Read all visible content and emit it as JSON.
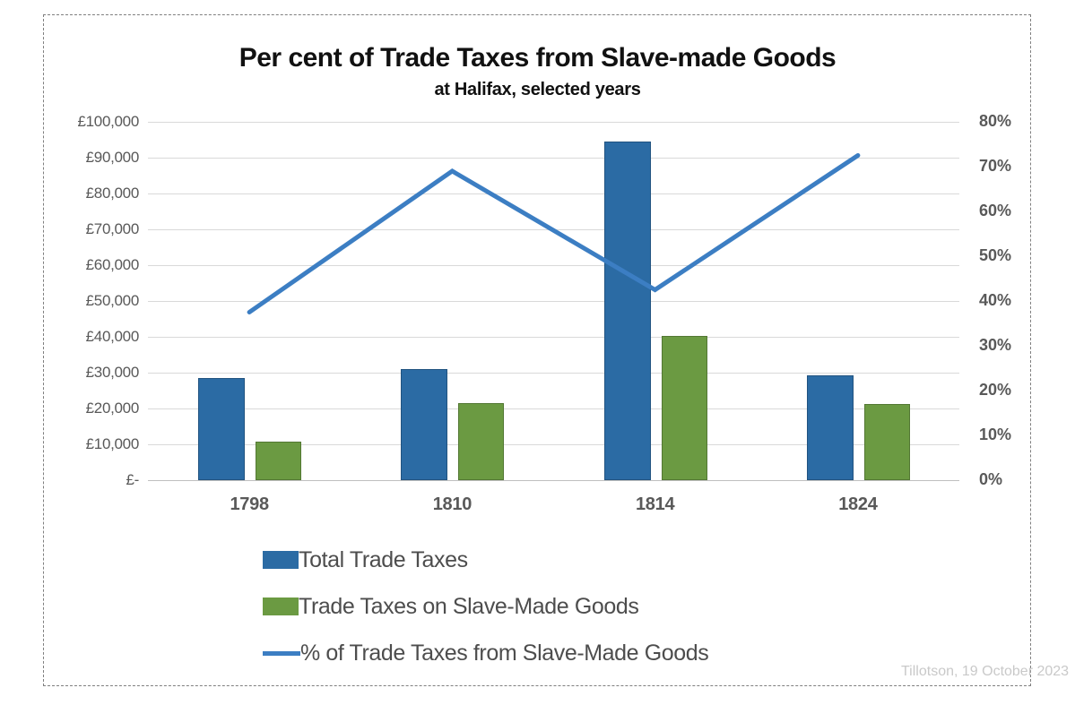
{
  "page": {
    "watermark": "Tillotson, 19 October 2023"
  },
  "chart_data": {
    "type": "bar",
    "subtype": "combo-clustered-bar-with-line",
    "title": "Per cent of Trade Taxes from Slave-made Goods",
    "subtitle": "at Halifax, selected years",
    "categories": [
      "1798",
      "1810",
      "1814",
      "1824"
    ],
    "series": [
      {
        "name": "Total Trade Taxes",
        "type": "bar",
        "axis": "left",
        "color": "#2b6ba4",
        "values": [
          28500,
          31000,
          94500,
          29200
        ]
      },
      {
        "name": "Trade Taxes on Slave-Made Goods",
        "type": "bar",
        "axis": "left",
        "color": "#6b9a42",
        "values": [
          10700,
          21400,
          40300,
          21300
        ]
      },
      {
        "name": "% of Trade Taxes from Slave-Made Goods",
        "type": "line",
        "axis": "right",
        "color": "#3c7ec3",
        "values": [
          37.5,
          69,
          42.5,
          72.5
        ]
      }
    ],
    "left_axis": {
      "min": 0,
      "max": 100000,
      "step": 10000,
      "tick_labels": [
        "£100,000",
        "£90,000",
        "£80,000",
        "£70,000",
        "£60,000",
        "£50,000",
        "£40,000",
        "£30,000",
        "£20,000",
        "£10,000",
        "£-"
      ]
    },
    "right_axis": {
      "min": 0,
      "max": 80,
      "step": 10,
      "tick_labels": [
        "80%",
        "70%",
        "60%",
        "50%",
        "40%",
        "30%",
        "20%",
        "10%",
        "0%"
      ]
    },
    "grid": true,
    "legend_position": "bottom-left",
    "colors": {
      "gridline": "#d9d9d9",
      "axis_line": "#bfbfbf",
      "tick_text": "#595959",
      "title_text": "#111111",
      "legend_text": "#4d4d4d",
      "watermark_text": "#c9c9c9",
      "border": "#7f7f7f"
    }
  }
}
